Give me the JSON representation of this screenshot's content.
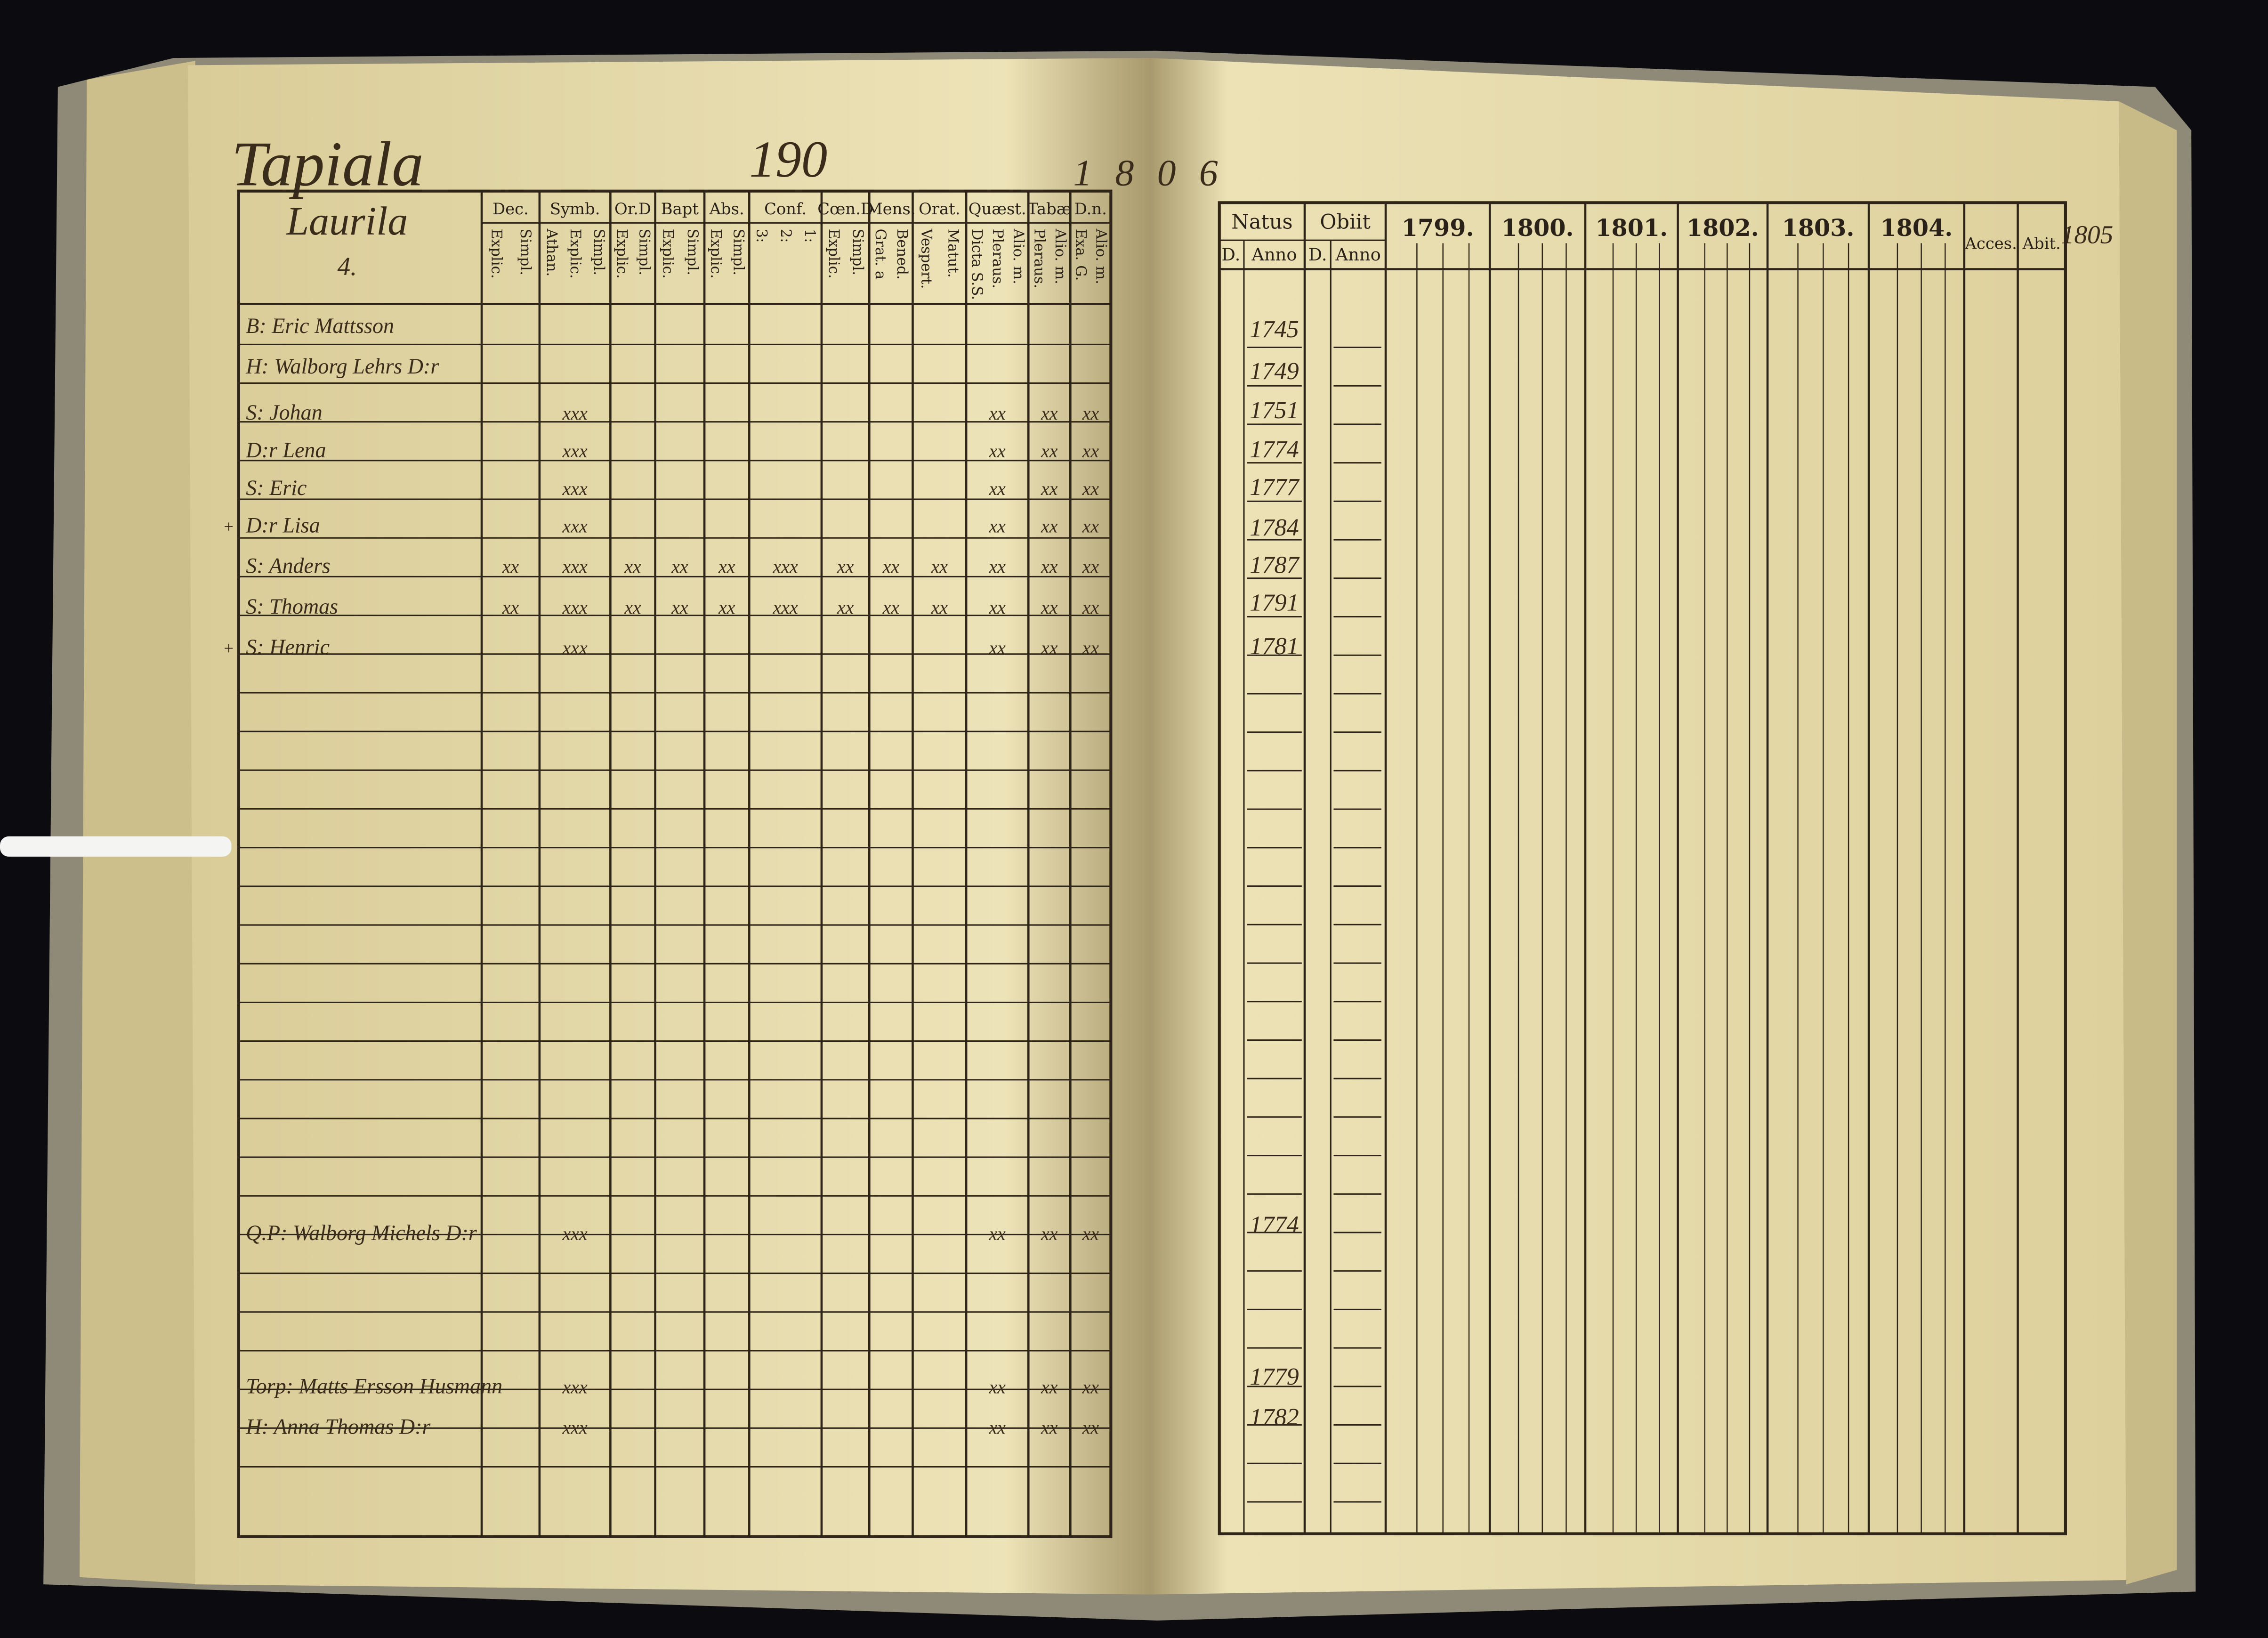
{
  "header": {
    "title": "Tapiala",
    "page_number": "190",
    "year": "1806",
    "margin_year": "1805"
  },
  "left_page": {
    "house": "Laurila",
    "house_number": "4.",
    "columns": [
      {
        "label": "Dec.",
        "sub": [
          "Explic.",
          "Simpl."
        ]
      },
      {
        "label": "Symb.",
        "sub": [
          "Athan.",
          "Explic.",
          "Simpl."
        ]
      },
      {
        "label": "Or.D",
        "sub": [
          "Explic.",
          "Simpl."
        ]
      },
      {
        "label": "Bapt",
        "sub": [
          "Explic.",
          "Simpl."
        ]
      },
      {
        "label": "Abs.",
        "sub": [
          "Explic.",
          "Simpl."
        ]
      },
      {
        "label": "Conf.",
        "sub": [
          "3:",
          "2:",
          "1:"
        ]
      },
      {
        "label": "Cœn.D",
        "sub": [
          "Explic.",
          "Simpl."
        ]
      },
      {
        "label": "Mens.",
        "sub": [
          "Grat. a",
          "Bened."
        ]
      },
      {
        "label": "Orat.",
        "sub": [
          "Vespert.",
          "Matut."
        ]
      },
      {
        "label": "Quæst.",
        "sub": [
          "Dicta S.S.",
          "Pleraus.",
          "Alio. m."
        ]
      },
      {
        "label": "Tabæ",
        "sub": [
          "Pleraus.",
          "Alio. m."
        ]
      },
      {
        "label": "D.n.",
        "sub": [
          "Exa. G.",
          "Alio. m."
        ]
      }
    ]
  },
  "right_page": {
    "groups": [
      {
        "label": "Natus",
        "sub": [
          "D.",
          "Anno"
        ]
      },
      {
        "label": "Obiit",
        "sub": [
          "D.",
          "Anno"
        ]
      }
    ],
    "years": [
      "1799.",
      "1800.",
      "1801.",
      "1802.",
      "1803.",
      "1804."
    ],
    "extra_columns": [
      "Acces.",
      "Abit."
    ]
  },
  "rows": [
    {
      "name": "B: Eric Mattsson",
      "anno": "1745",
      "marks": [
        null,
        null,
        null,
        null,
        null,
        null,
        null,
        null,
        null,
        null,
        null,
        null
      ]
    },
    {
      "name": "H: Walborg Lehrs D:r",
      "anno": "1749",
      "marks": [
        null,
        null,
        null,
        null,
        null,
        null,
        null,
        null,
        null,
        null,
        null,
        null
      ]
    },
    {
      "name": "S: Johan",
      "anno": "1751",
      "marks": [
        null,
        "xxx",
        null,
        null,
        null,
        null,
        null,
        null,
        null,
        "xx",
        "xx",
        "xx"
      ]
    },
    {
      "name": "D:r Lena",
      "anno": "1774",
      "marks": [
        null,
        "xxx",
        null,
        null,
        null,
        null,
        null,
        null,
        null,
        "xx",
        "xx",
        "xx"
      ]
    },
    {
      "name": "S: Eric",
      "anno": "1777",
      "marks": [
        null,
        "xxx",
        null,
        null,
        null,
        null,
        null,
        null,
        null,
        "xx",
        "xx",
        "xx"
      ]
    },
    {
      "name": "D:r Lisa",
      "note": "+",
      "anno": "1784",
      "marks": [
        null,
        "xxx",
        null,
        null,
        null,
        null,
        null,
        null,
        null,
        "xx",
        "xx",
        "xx"
      ]
    },
    {
      "name": "S: Anders",
      "anno": "1787",
      "marks": [
        "xx",
        "xxx",
        "xx",
        "xx",
        "xx",
        "xxx",
        "xx",
        "xx",
        "xx",
        "xx",
        "xx",
        "xx"
      ]
    },
    {
      "name": "S: Thomas",
      "anno": "1791",
      "marks": [
        "xx",
        "xxx",
        "xx",
        "xx",
        "xx",
        "xxx",
        "xx",
        "xx",
        "xx",
        "xx",
        "xx",
        "xx"
      ]
    },
    {
      "name": "S: Henric",
      "note": "+",
      "anno": "1781",
      "marks": [
        null,
        "xxx",
        null,
        null,
        null,
        null,
        null,
        null,
        null,
        "xx",
        "xx",
        "xx"
      ]
    },
    {
      "name": "Q.P: Walborg Michels D:r",
      "anno": "1774",
      "marks": [
        null,
        "xxx",
        null,
        null,
        null,
        null,
        null,
        null,
        null,
        "xx",
        "xx",
        "xx"
      ]
    },
    {
      "name": "Torp: Matts Ersson Husmann",
      "anno": "1779",
      "marks": [
        null,
        "xxx",
        null,
        null,
        null,
        null,
        null,
        null,
        null,
        "xx",
        "xx",
        "xx"
      ]
    },
    {
      "name": "H: Anna Thomas D:r",
      "anno": "1782",
      "marks": [
        null,
        "xxx",
        null,
        null,
        null,
        null,
        null,
        null,
        null,
        "xx",
        "xx",
        "xx"
      ]
    }
  ]
}
